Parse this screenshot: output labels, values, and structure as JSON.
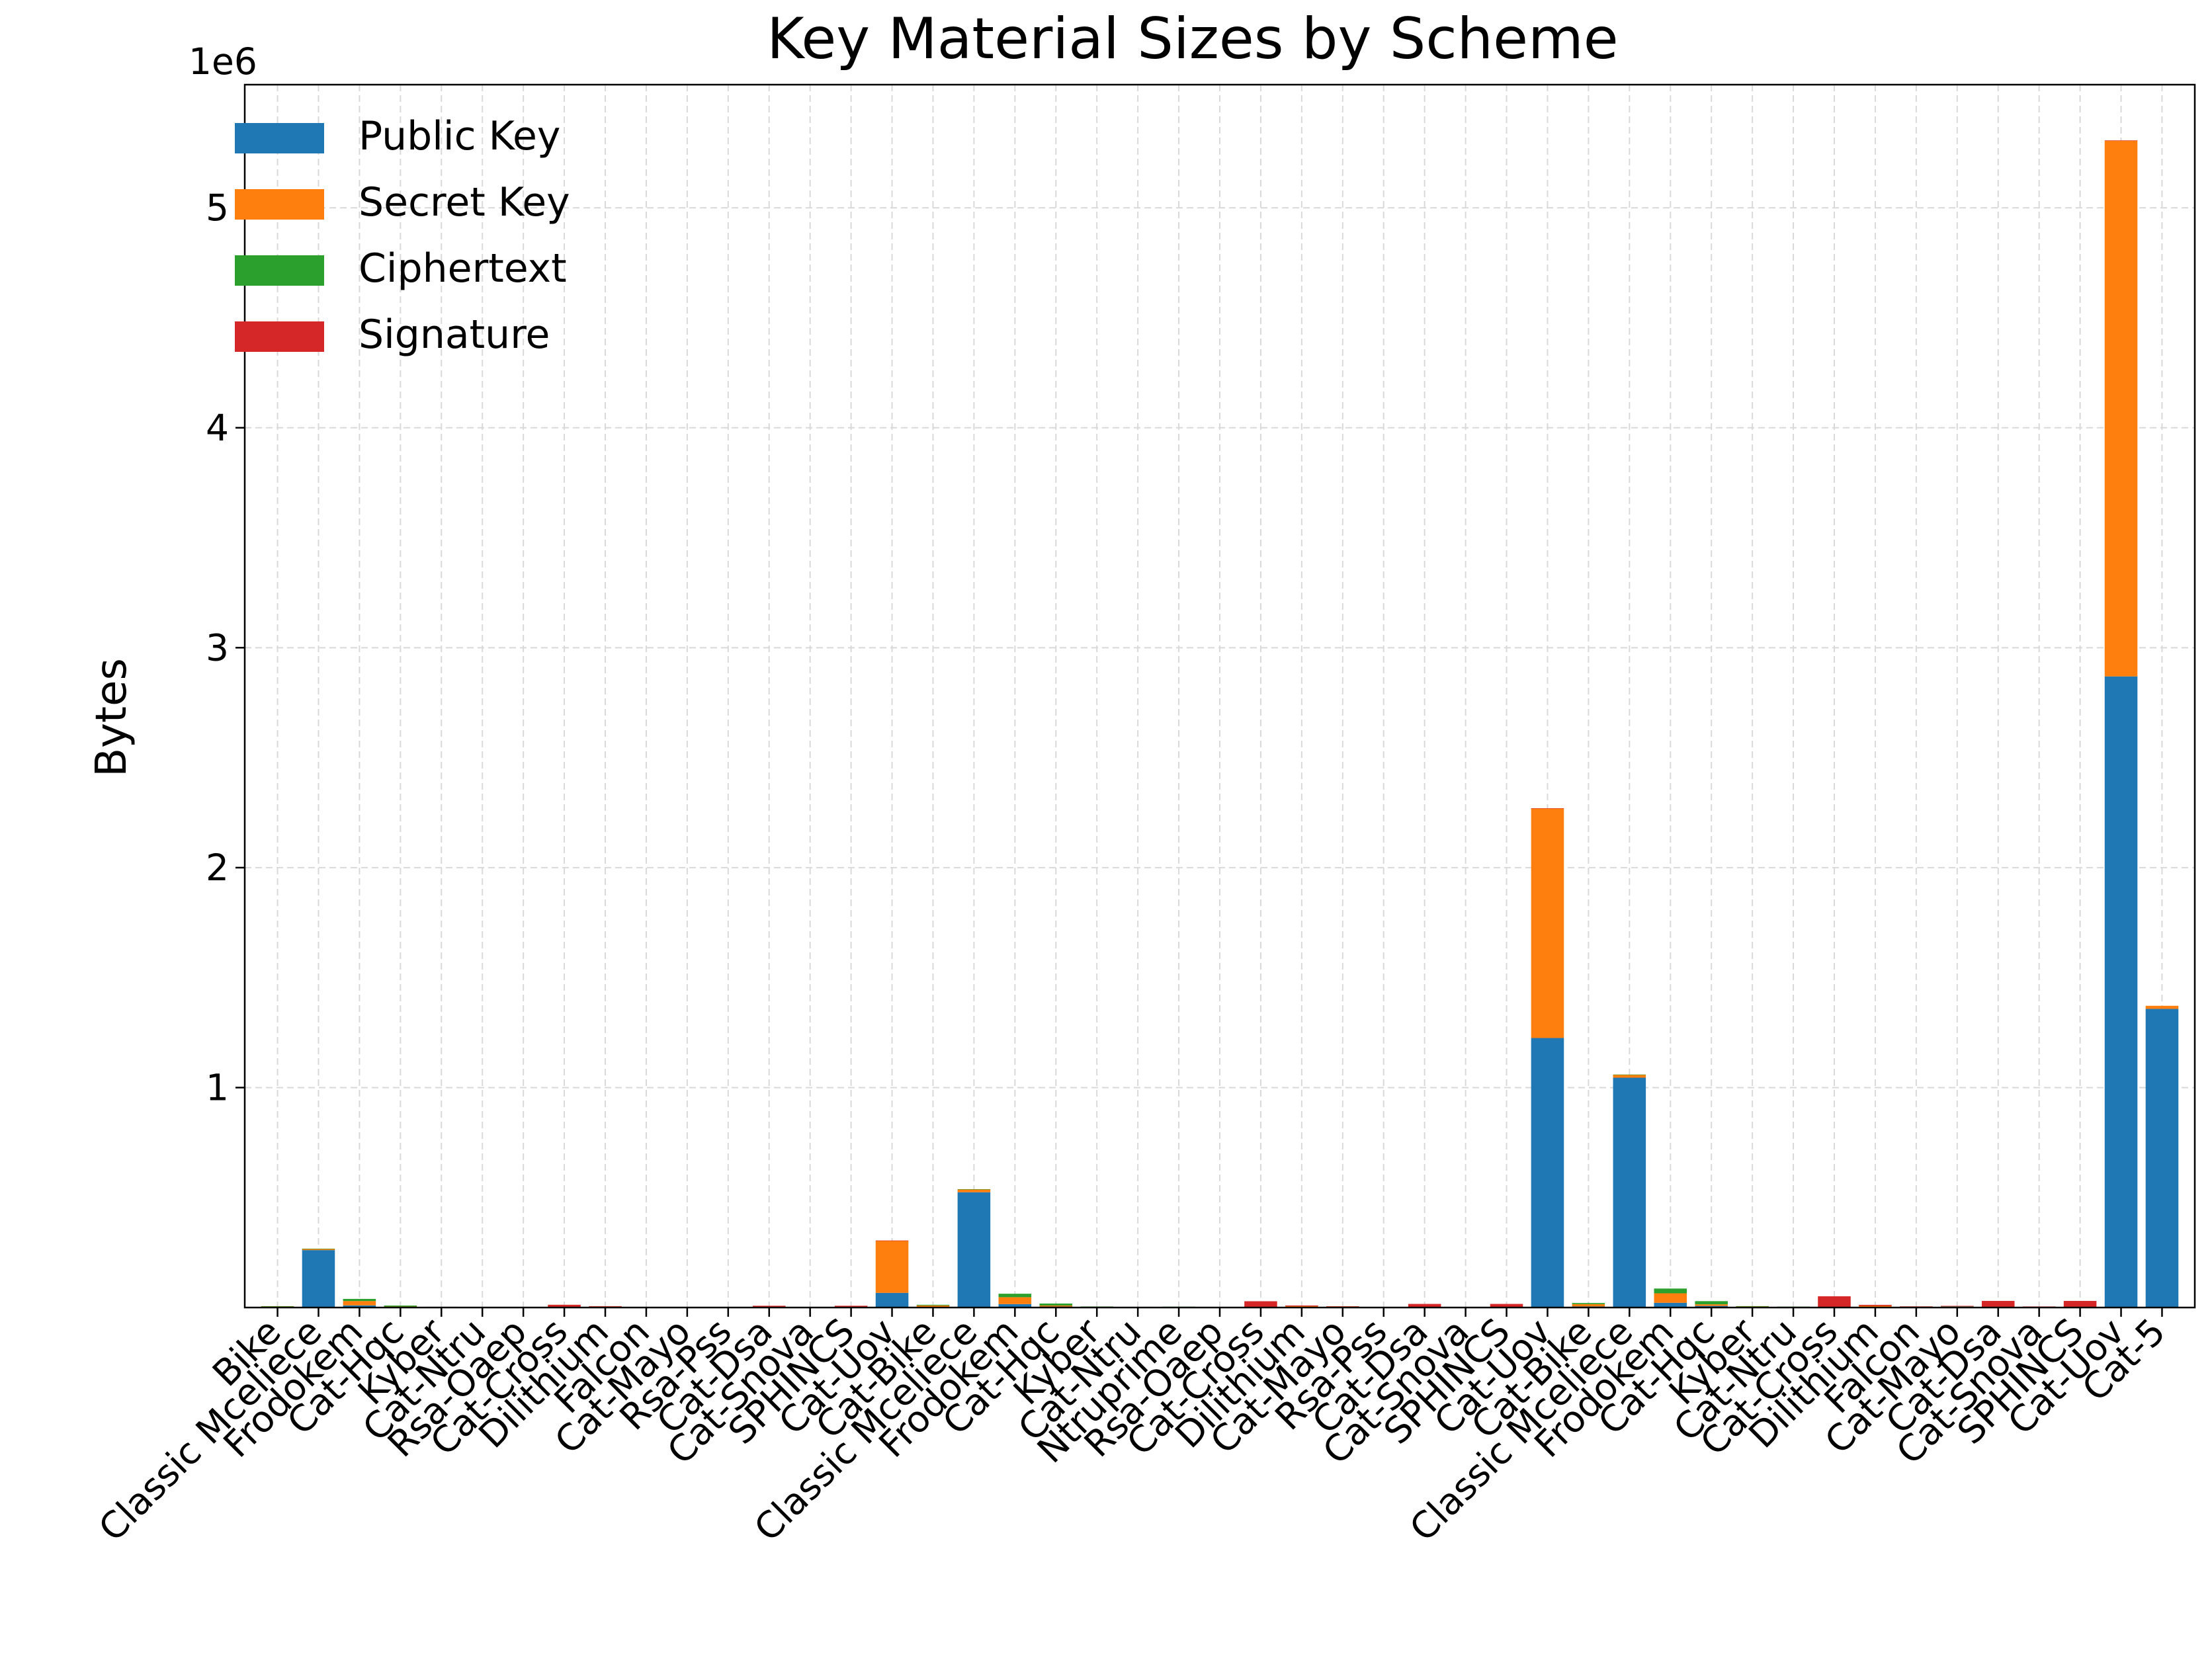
{
  "chart_data": {
    "type": "bar",
    "stacked": true,
    "title": "Key Material Sizes by Scheme",
    "ylabel": "Bytes",
    "xlabel": "",
    "y_offset_label": "1e6",
    "y_scale_factor": 1000000,
    "ylim": [
      0,
      5560000
    ],
    "yticks": [
      1,
      2,
      3,
      4,
      5
    ],
    "grid": true,
    "legend_position": "upper-left",
    "categories": [
      "Bike",
      "Classic Mceliece",
      "Frodokem",
      "Cat-Hqc",
      "Kyber",
      "Cat-Ntru",
      "Rsa-Oaep",
      "Cat-Cross",
      "Dilithium",
      "Falcon",
      "Cat-Mayo",
      "Rsa-Pss",
      "Cat-Dsa",
      "Cat-Snova",
      "SPHINCS",
      "Cat-Uov",
      "Cat-Bike",
      "Classic Mceliece",
      "Frodokem",
      "Cat-Hqc",
      "Kyber",
      "Cat-Ntru",
      "Ntruprime",
      "Rsa-Oaep",
      "Cat-Cross",
      "Dilithium",
      "Cat-Mayo",
      "Rsa-Pss",
      "Cat-Dsa",
      "Cat-Snova",
      "SPHINCS",
      "Cat-Uov",
      "Cat-Bike",
      "Classic Mceliece",
      "Frodokem",
      "Cat-Hqc",
      "Kyber",
      "Cat-Ntru",
      "Cat-Cross",
      "Dilithium",
      "Falcon",
      "Cat-Mayo",
      "Cat-Dsa",
      "Cat-Snova",
      "SPHINCS",
      "Cat-Uov",
      "Cat-5"
    ],
    "series": [
      {
        "name": "Public Key",
        "color": "#1f77b4",
        "values": [
          1541,
          261120,
          9616,
          2249,
          800,
          699,
          256,
          77,
          1312,
          897,
          1420,
          256,
          32,
          1016,
          32,
          66576,
          3083,
          524160,
          15632,
          4522,
          1184,
          930,
          1039,
          384,
          115,
          1952,
          4912,
          384,
          48,
          2320,
          48,
          1225440,
          5122,
          1044992,
          21520,
          7245,
          1568,
          1230,
          153,
          2592,
          1793,
          6600,
          64,
          4112,
          64,
          2869440,
          1357824
        ]
      },
      {
        "name": "Secret Key",
        "color": "#ff7f0e",
        "values": [
          3110,
          6492,
          19888,
          2305,
          1632,
          935,
          1024,
          32,
          2560,
          1281,
          24,
          1024,
          64,
          48,
          64,
          237896,
          6234,
          13608,
          31296,
          4586,
          2400,
          1234,
          1838,
          1536,
          48,
          4032,
          40,
          1536,
          96,
          72,
          96,
          1044320,
          10276,
          13932,
          43088,
          7317,
          3168,
          1590,
          64,
          4896,
          2305,
          56,
          128,
          96,
          128,
          2436704,
          14120
        ]
      },
      {
        "name": "Ciphertext",
        "color": "#2ca02c",
        "values": [
          1573,
          96,
          9720,
          4433,
          768,
          699,
          256,
          0,
          0,
          0,
          0,
          0,
          0,
          0,
          0,
          0,
          3115,
          156,
          15744,
          8978,
          1088,
          930,
          1039,
          384,
          0,
          0,
          0,
          0,
          0,
          0,
          0,
          0,
          5154,
          208,
          21632,
          14421,
          1568,
          1230,
          0,
          0,
          0,
          0,
          0,
          0,
          0,
          0,
          0
        ]
      },
      {
        "name": "Signature",
        "color": "#d62728",
        "values": [
          0,
          0,
          0,
          0,
          0,
          0,
          0,
          12432,
          2420,
          666,
          454,
          256,
          7856,
          248,
          7856,
          96,
          0,
          0,
          0,
          0,
          0,
          0,
          0,
          0,
          28391,
          3309,
          681,
          384,
          16224,
          376,
          16224,
          200,
          0,
          0,
          0,
          0,
          0,
          0,
          50818,
          4627,
          1280,
          964,
          29792,
          564,
          29792,
          260,
          0
        ]
      }
    ]
  }
}
